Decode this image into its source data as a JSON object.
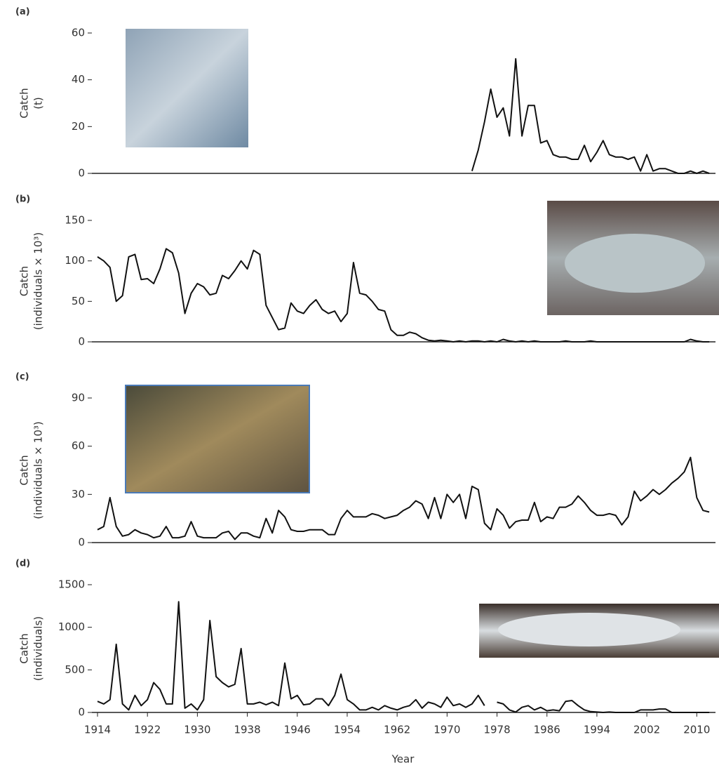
{
  "chart_data": [
    {
      "type": "line",
      "label": "(a)",
      "ylabel": [
        "Catch",
        "(t)"
      ],
      "color": "#111111",
      "xlim": [
        1914,
        2013
      ],
      "ylim": [
        0,
        60
      ],
      "yticks": [
        0,
        20,
        40,
        60
      ],
      "x": [
        1974,
        1975,
        1976,
        1977,
        1978,
        1979,
        1980,
        1981,
        1982,
        1983,
        1984,
        1985,
        1986,
        1987,
        1988,
        1989,
        1990,
        1991,
        1992,
        1993,
        1994,
        1995,
        1996,
        1997,
        1998,
        1999,
        2000,
        2001,
        2002,
        2003,
        2004,
        2005,
        2006,
        2007,
        2008,
        2009,
        2010,
        2011,
        2012
      ],
      "values": [
        1,
        10,
        22,
        36,
        24,
        28,
        16,
        49,
        16,
        29,
        29,
        13,
        14,
        8,
        7,
        7,
        6,
        6,
        12,
        5,
        9,
        14,
        8,
        7,
        7,
        6,
        7,
        1,
        8,
        1,
        2,
        2,
        1,
        0,
        0,
        1,
        0,
        1,
        0
      ]
    },
    {
      "type": "line",
      "label": "(b)",
      "ylabel": [
        "Catch",
        "(individuals × 10³)"
      ],
      "color": "#111111",
      "xlim": [
        1914,
        2013
      ],
      "ylim": [
        0,
        150
      ],
      "yticks": [
        0,
        50,
        100,
        150
      ],
      "x": [
        1914,
        1915,
        1916,
        1917,
        1918,
        1919,
        1920,
        1921,
        1922,
        1923,
        1924,
        1925,
        1926,
        1927,
        1928,
        1929,
        1930,
        1931,
        1932,
        1933,
        1934,
        1935,
        1936,
        1937,
        1938,
        1939,
        1940,
        1941,
        1942,
        1943,
        1944,
        1945,
        1946,
        1947,
        1948,
        1949,
        1950,
        1951,
        1952,
        1953,
        1954,
        1955,
        1956,
        1957,
        1958,
        1959,
        1960,
        1961,
        1962,
        1963,
        1964,
        1965,
        1966,
        1967,
        1968,
        1969,
        1970,
        1971,
        1972,
        1973,
        1974,
        1975,
        1976,
        1977,
        1978,
        1979,
        1980,
        1981,
        1982,
        1983,
        1984,
        1985,
        1986,
        1987,
        1988,
        1989,
        1990,
        1991,
        1992,
        1993,
        1994,
        1995,
        1996,
        1997,
        1998,
        1999,
        2000,
        2001,
        2002,
        2003,
        2004,
        2005,
        2006,
        2007,
        2008,
        2009,
        2010,
        2011,
        2012
      ],
      "values": [
        105,
        100,
        92,
        50,
        57,
        105,
        108,
        77,
        78,
        72,
        90,
        115,
        110,
        85,
        35,
        60,
        72,
        68,
        58,
        60,
        82,
        78,
        88,
        100,
        90,
        113,
        108,
        45,
        30,
        15,
        17,
        48,
        38,
        35,
        45,
        52,
        40,
        35,
        38,
        25,
        35,
        98,
        60,
        58,
        50,
        40,
        38,
        15,
        8,
        8,
        12,
        10,
        5,
        2,
        1,
        2,
        1,
        0,
        1,
        0,
        1,
        1,
        0,
        1,
        0,
        3,
        1,
        0,
        1,
        0,
        1,
        0,
        0,
        0,
        0,
        1,
        0,
        0,
        0,
        1,
        0,
        0,
        0,
        0,
        0,
        0,
        0,
        0,
        0,
        0,
        0,
        0,
        0,
        0,
        0,
        3,
        1,
        0,
        0
      ]
    },
    {
      "type": "line",
      "label": "(c)",
      "ylabel": [
        "Catch",
        "(individuals × 10³)"
      ],
      "color": "#111111",
      "xlim": [
        1914,
        2013
      ],
      "ylim": [
        0,
        90
      ],
      "yticks": [
        0,
        30,
        60,
        90
      ],
      "x": [
        1914,
        1915,
        1916,
        1917,
        1918,
        1919,
        1920,
        1921,
        1922,
        1923,
        1924,
        1925,
        1926,
        1927,
        1928,
        1929,
        1930,
        1931,
        1932,
        1933,
        1934,
        1935,
        1936,
        1937,
        1938,
        1939,
        1940,
        1941,
        1942,
        1943,
        1944,
        1945,
        1946,
        1947,
        1948,
        1949,
        1950,
        1951,
        1952,
        1953,
        1954,
        1955,
        1956,
        1957,
        1958,
        1959,
        1960,
        1961,
        1962,
        1963,
        1964,
        1965,
        1966,
        1967,
        1968,
        1969,
        1970,
        1971,
        1972,
        1973,
        1974,
        1975,
        1976,
        1977,
        1978,
        1979,
        1980,
        1981,
        1982,
        1983,
        1984,
        1985,
        1986,
        1987,
        1988,
        1989,
        1990,
        1991,
        1992,
        1993,
        1994,
        1995,
        1996,
        1997,
        1998,
        1999,
        2000,
        2001,
        2002,
        2003,
        2004,
        2005,
        2006,
        2007,
        2008,
        2009,
        2010,
        2011,
        2012
      ],
      "values": [
        8,
        10,
        28,
        10,
        4,
        5,
        8,
        6,
        5,
        3,
        4,
        10,
        3,
        3,
        4,
        13,
        4,
        3,
        3,
        3,
        6,
        7,
        2,
        6,
        6,
        4,
        3,
        15,
        6,
        20,
        16,
        8,
        7,
        7,
        8,
        8,
        8,
        5,
        5,
        15,
        20,
        16,
        16,
        16,
        18,
        17,
        15,
        16,
        17,
        20,
        22,
        26,
        24,
        15,
        28,
        15,
        30,
        25,
        30,
        15,
        35,
        33,
        12,
        8,
        21,
        17,
        9,
        13,
        14,
        14,
        25,
        13,
        16,
        15,
        22,
        22,
        24,
        29,
        25,
        20,
        17,
        17,
        18,
        17,
        11,
        16,
        32,
        26,
        29,
        33,
        30,
        33,
        37,
        40,
        44,
        53,
        28,
        20,
        19
      ]
    },
    {
      "type": "line",
      "label": "(d)",
      "ylabel": [
        "Catch",
        "(individuals)"
      ],
      "color": "#111111",
      "xlim": [
        1914,
        2013
      ],
      "ylim": [
        0,
        1500
      ],
      "yticks": [
        0,
        500,
        1000,
        1500
      ],
      "xticks": [
        1914,
        1922,
        1930,
        1938,
        1946,
        1954,
        1962,
        1970,
        1978,
        1986,
        1994,
        2002,
        2010
      ],
      "xlabel": "Year",
      "x": [
        1914,
        1915,
        1916,
        1917,
        1918,
        1919,
        1920,
        1921,
        1922,
        1923,
        1924,
        1925,
        1926,
        1927,
        1928,
        1929,
        1930,
        1931,
        1932,
        1933,
        1934,
        1935,
        1936,
        1937,
        1938,
        1939,
        1940,
        1941,
        1942,
        1943,
        1944,
        1945,
        1946,
        1947,
        1948,
        1949,
        1950,
        1951,
        1952,
        1953,
        1954,
        1955,
        1956,
        1957,
        1958,
        1959,
        1960,
        1961,
        1962,
        1963,
        1964,
        1965,
        1966,
        1967,
        1968,
        1969,
        1970,
        1971,
        1972,
        1973,
        1974,
        1975,
        1976,
        1977,
        1978,
        1979,
        1980,
        1981,
        1982,
        1983,
        1984,
        1985,
        1986,
        1987,
        1988,
        1989,
        1990,
        1991,
        1992,
        1993,
        1994,
        1995,
        1996,
        1997,
        1998,
        1999,
        2000,
        2001,
        2002,
        2003,
        2004,
        2005,
        2006,
        2007,
        2008,
        2009,
        2010,
        2011,
        2012
      ],
      "values": [
        130,
        100,
        150,
        800,
        100,
        30,
        200,
        80,
        150,
        350,
        270,
        100,
        100,
        1300,
        50,
        100,
        30,
        150,
        1080,
        420,
        350,
        300,
        330,
        750,
        100,
        100,
        120,
        90,
        120,
        80,
        580,
        160,
        200,
        90,
        100,
        160,
        160,
        80,
        200,
        450,
        150,
        100,
        30,
        30,
        60,
        30,
        80,
        50,
        30,
        60,
        80,
        150,
        50,
        120,
        100,
        60,
        180,
        80,
        100,
        60,
        100,
        200,
        80,
        null,
        120,
        100,
        30,
        5,
        60,
        80,
        30,
        60,
        20,
        30,
        20,
        130,
        140,
        80,
        30,
        10,
        5,
        0,
        5,
        0,
        0,
        0,
        0,
        30,
        30,
        30,
        40,
        40,
        0,
        0,
        0,
        0,
        0,
        0,
        0
      ]
    }
  ]
}
